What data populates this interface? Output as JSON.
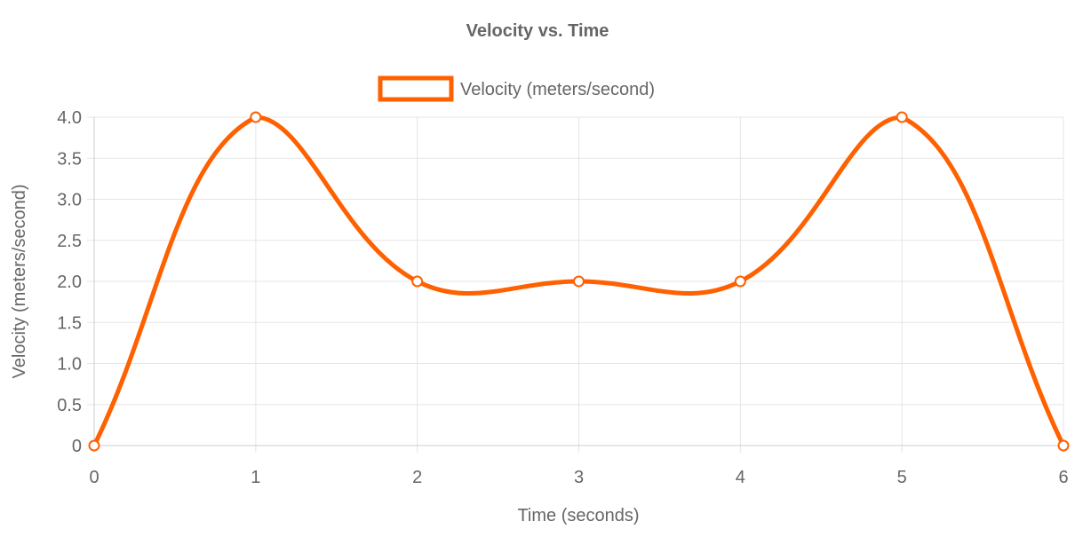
{
  "chart_data": {
    "type": "line",
    "title": "Velocity vs. Time",
    "xlabel": "Time (seconds)",
    "ylabel": "Velocity (meters/second)",
    "x": [
      0,
      1,
      2,
      3,
      4,
      5,
      6
    ],
    "series": [
      {
        "name": "Velocity (meters/second)",
        "values": [
          0,
          4,
          2,
          2,
          2,
          4,
          0
        ],
        "color": "#ff6000"
      }
    ],
    "xlim": [
      0,
      6
    ],
    "ylim": [
      0,
      4
    ],
    "x_ticks": [
      "0",
      "1",
      "2",
      "3",
      "4",
      "5",
      "6"
    ],
    "y_ticks": [
      "0",
      "0.5",
      "1.0",
      "1.5",
      "2.0",
      "2.5",
      "3.0",
      "3.5",
      "4.0"
    ],
    "grid": true,
    "legend_position": "top-center",
    "smooth": true
  }
}
